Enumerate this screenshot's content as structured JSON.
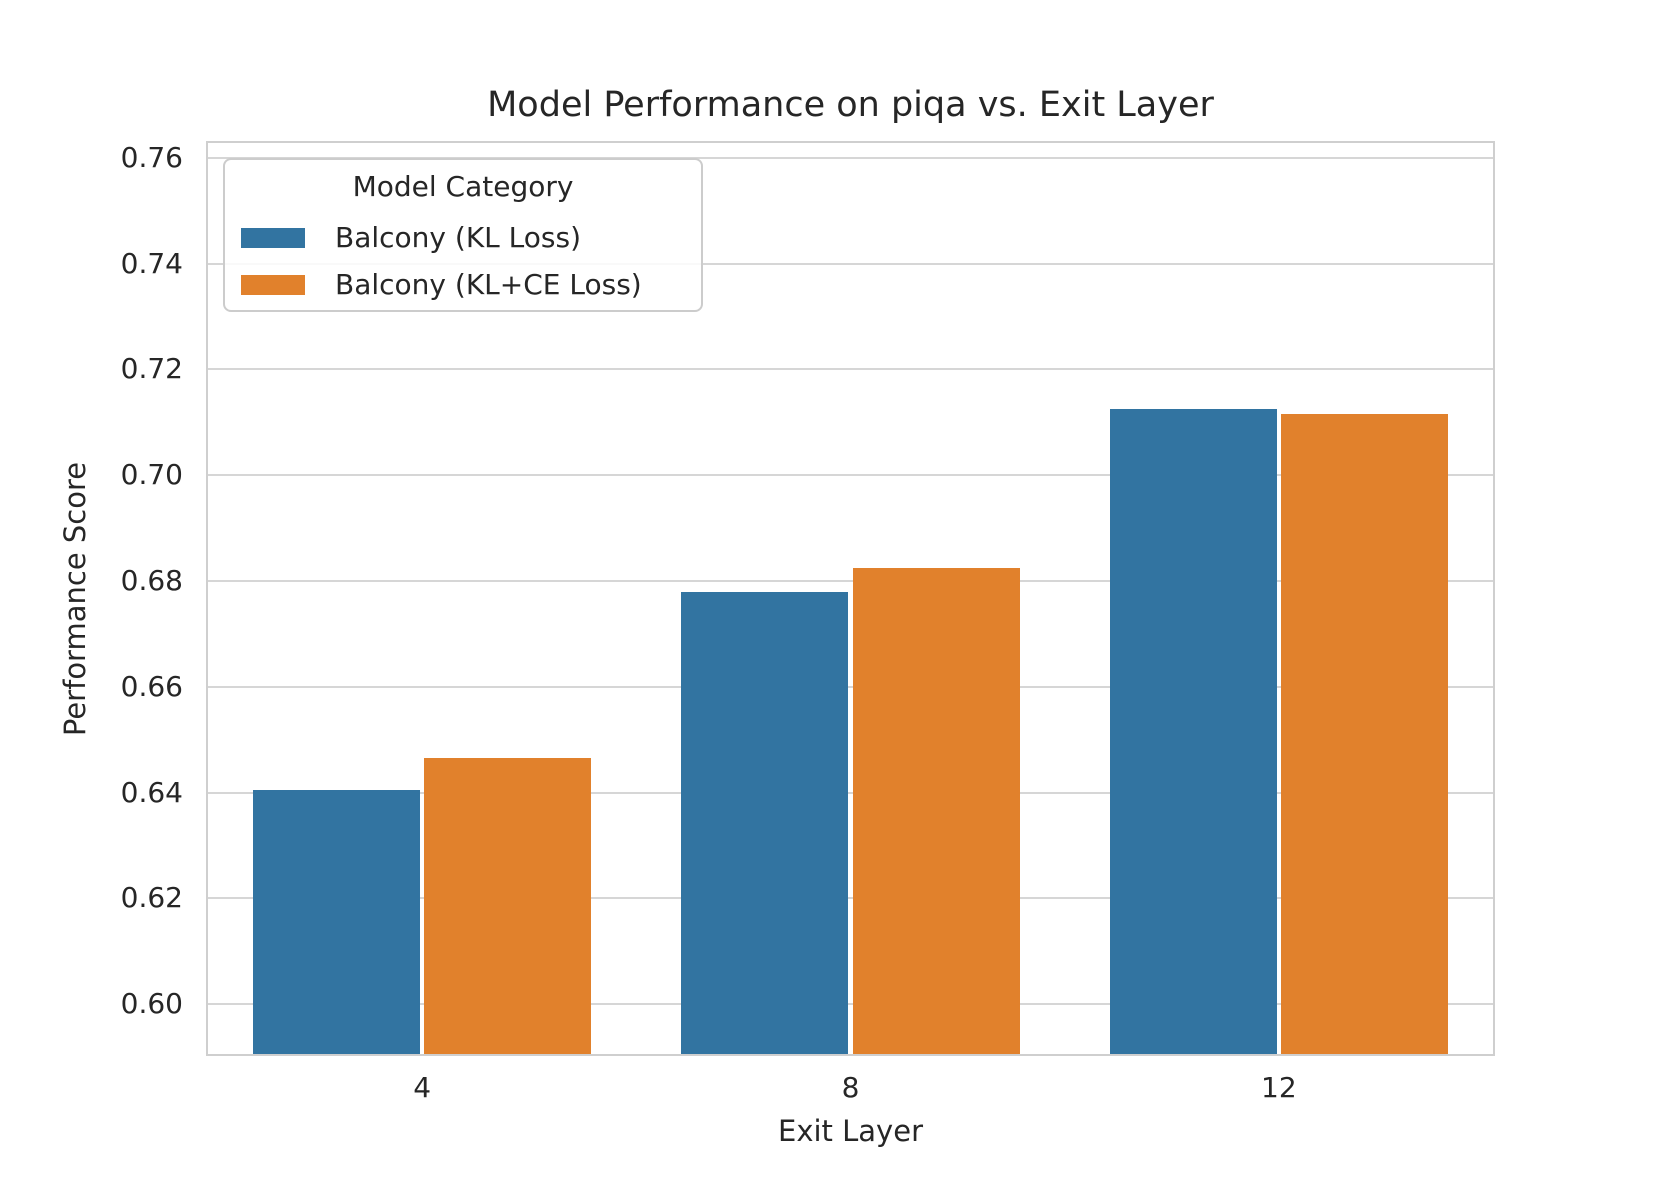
{
  "figure": {
    "title": "Model Performance on piqa vs. Exit Layer",
    "xlabel": "Exit Layer",
    "ylabel": "Performance Score"
  },
  "legend": {
    "title": "Model Category",
    "entries": [
      {
        "label": "Balcony (KL Loss)",
        "color": "#3274a1"
      },
      {
        "label": "Balcony (KL+CE Loss)",
        "color": "#e1812c"
      }
    ]
  },
  "chart_data": {
    "type": "bar",
    "title": "Model Performance on piqa vs. Exit Layer",
    "xlabel": "Exit Layer",
    "ylabel": "Performance Score",
    "categories": [
      "4",
      "8",
      "12"
    ],
    "series": [
      {
        "name": "Balcony (KL Loss)",
        "color": "#3274a1",
        "values": [
          0.6405,
          0.678,
          0.7125
        ]
      },
      {
        "name": "Balcony (KL+CE Loss)",
        "color": "#e1812c",
        "values": [
          0.6465,
          0.6825,
          0.7115
        ]
      }
    ],
    "yticks": [
      0.6,
      0.62,
      0.64,
      0.66,
      0.68,
      0.7,
      0.72,
      0.74,
      0.76
    ],
    "ylim": [
      0.5906,
      0.7628
    ],
    "group_width": 0.8,
    "grid": "horizontal",
    "legend_position": "upper left",
    "legend_title": "Model Category"
  },
  "colors": {
    "background": "#ffffff",
    "text": "#262626",
    "grid": "#d6d6d6",
    "spine": "#cfcfcf",
    "blue": "#3274a1",
    "orange": "#e1812c"
  }
}
